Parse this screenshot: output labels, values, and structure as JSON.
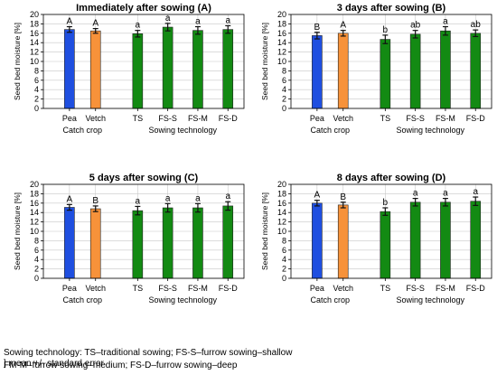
{
  "colors": {
    "pea": "#1f4fe0",
    "vetch": "#f7923a",
    "sowing": "#138a13",
    "grid": "#c8c8c8",
    "error": "#111111"
  },
  "chart_data": [
    {
      "type": "bar",
      "title": "Immediately after sowing (A)",
      "ylabel": "Seed bed moisture [%]",
      "ylim": [
        0,
        20
      ],
      "yticks": [
        0,
        2,
        4,
        6,
        8,
        10,
        12,
        14,
        16,
        18,
        20
      ],
      "grid": true,
      "categories": [
        "Pea",
        "Vetch",
        "TS",
        "FS-S",
        "FS-M",
        "FS-D"
      ],
      "groups": [
        {
          "label": "Catch crop",
          "categories": [
            "Pea",
            "Vetch"
          ]
        },
        {
          "label": "Sowing technology",
          "categories": [
            "TS",
            "FS-S",
            "FS-M",
            "FS-D"
          ]
        }
      ],
      "values": [
        16.8,
        16.5,
        15.9,
        17.3,
        16.6,
        16.8
      ],
      "errors": [
        0.6,
        0.5,
        0.7,
        0.8,
        0.8,
        0.8
      ],
      "letters": [
        "A",
        "A",
        "a",
        "a",
        "a",
        "a"
      ]
    },
    {
      "type": "bar",
      "title": "3 days after sowing (B)",
      "ylabel": "Seed bed moisture [%]",
      "ylim": [
        0,
        20
      ],
      "yticks": [
        0,
        2,
        4,
        6,
        8,
        10,
        12,
        14,
        16,
        18,
        20
      ],
      "grid": true,
      "categories": [
        "Pea",
        "Vetch",
        "TS",
        "FS-S",
        "FS-M",
        "FS-D"
      ],
      "groups": [
        {
          "label": "Catch crop",
          "categories": [
            "Pea",
            "Vetch"
          ]
        },
        {
          "label": "Sowing technology",
          "categories": [
            "TS",
            "FS-S",
            "FS-M",
            "FS-D"
          ]
        }
      ],
      "values": [
        15.5,
        16.0,
        14.7,
        15.8,
        16.5,
        16.0
      ],
      "errors": [
        0.7,
        0.6,
        0.9,
        0.8,
        0.9,
        0.7
      ],
      "letters": [
        "B",
        "A",
        "b",
        "ab",
        "a",
        "ab"
      ]
    },
    {
      "type": "bar",
      "title": "5 days after sowing (C)",
      "ylabel": "Seed bed moisture [%]",
      "ylim": [
        0,
        20
      ],
      "yticks": [
        0,
        2,
        4,
        6,
        8,
        10,
        12,
        14,
        16,
        18,
        20
      ],
      "grid": true,
      "categories": [
        "Pea",
        "Vetch",
        "TS",
        "FS-S",
        "FS-M",
        "FS-D"
      ],
      "groups": [
        {
          "label": "Catch crop",
          "categories": [
            "Pea",
            "Vetch"
          ]
        },
        {
          "label": "Sowing technology",
          "categories": [
            "TS",
            "FS-S",
            "FS-M",
            "FS-D"
          ]
        }
      ],
      "values": [
        15.1,
        14.8,
        14.4,
        15.0,
        15.0,
        15.4
      ],
      "errors": [
        0.6,
        0.6,
        0.9,
        0.9,
        0.9,
        0.9
      ],
      "letters": [
        "A",
        "B",
        "a",
        "a",
        "a",
        "a"
      ]
    },
    {
      "type": "bar",
      "title": "8 days after sowing (D)",
      "ylabel": "Seed bed moisture [%]",
      "ylim": [
        0,
        20
      ],
      "yticks": [
        0,
        2,
        4,
        6,
        8,
        10,
        12,
        14,
        16,
        18,
        20
      ],
      "grid": true,
      "categories": [
        "Pea",
        "Vetch",
        "TS",
        "FS-S",
        "FS-M",
        "FS-D"
      ],
      "groups": [
        {
          "label": "Catch crop",
          "categories": [
            "Pea",
            "Vetch"
          ]
        },
        {
          "label": "Sowing technology",
          "categories": [
            "TS",
            "FS-S",
            "FS-M",
            "FS-D"
          ]
        }
      ],
      "values": [
        16.0,
        15.6,
        14.2,
        16.2,
        16.2,
        16.4
      ],
      "errors": [
        0.6,
        0.6,
        0.8,
        0.8,
        0.8,
        0.9
      ],
      "letters": [
        "A",
        "B",
        "b",
        "a",
        "a",
        "a"
      ]
    }
  ],
  "footnote": {
    "line1": "Sowing technology: TS–traditional sowing; FS-S–furrow sowing–shallow",
    "line2": "FM-M–furrow sowing–medium; FS-D–furrow sowing–deep",
    "legend": "] mean +/- standard error"
  }
}
